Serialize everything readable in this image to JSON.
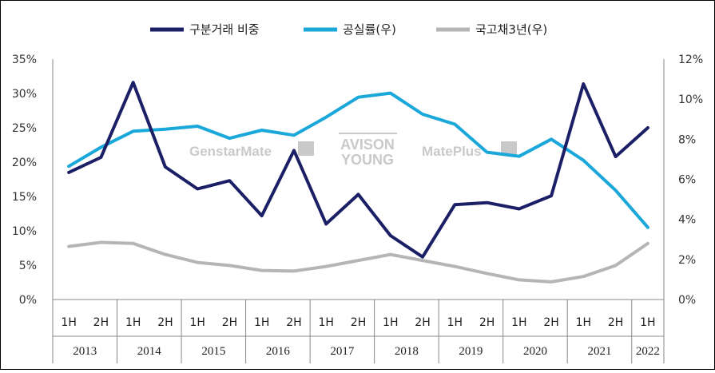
{
  "colors": {
    "share": "#1b1f66",
    "vacancy": "#1aa7d9",
    "bond": "#b5b5b5",
    "axis": "#888888",
    "watermark": "#c9c9c9"
  },
  "watermarks": {
    "genstar": "GenstarMate",
    "avison_line1": "AVISON",
    "avison_line2": "YOUNG",
    "mateplus": "MatePlus"
  },
  "chart_data": {
    "type": "line",
    "title": "",
    "legend_position": "top",
    "categories": [
      "1H",
      "2H",
      "1H",
      "2H",
      "1H",
      "2H",
      "1H",
      "2H",
      "1H",
      "2H",
      "1H",
      "2H",
      "1H",
      "2H",
      "1H",
      "2H",
      "1H",
      "2H",
      "1H"
    ],
    "years": [
      "2013",
      "2014",
      "2015",
      "2016",
      "2017",
      "2018",
      "2019",
      "2020",
      "2021",
      "2022"
    ],
    "left_axis": {
      "min": 0,
      "max": 35,
      "step": 5,
      "ticks": [
        "0%",
        "5%",
        "10%",
        "15%",
        "20%",
        "25%",
        "30%",
        "35%"
      ]
    },
    "right_axis": {
      "min": 0,
      "max": 12,
      "step": 2,
      "ticks": [
        "0%",
        "2%",
        "4%",
        "6%",
        "8%",
        "10%",
        "12%"
      ]
    },
    "series": [
      {
        "name": "구분거래 비중",
        "axis": "left",
        "values": [
          18.5,
          20.7,
          31.6,
          19.3,
          16.1,
          17.3,
          12.2,
          21.7,
          11.0,
          15.3,
          9.3,
          6.2,
          13.8,
          14.1,
          13.2,
          15.1,
          31.4,
          20.8,
          25.0
        ]
      },
      {
        "name": "공실률(우)",
        "axis": "right",
        "values": [
          6.65,
          7.6,
          8.4,
          8.5,
          8.65,
          8.05,
          8.45,
          8.2,
          9.1,
          10.1,
          10.3,
          9.25,
          8.75,
          7.35,
          7.15,
          8.0,
          6.95,
          5.45,
          3.6
        ]
      },
      {
        "name": "국고채3년(우)",
        "axis": "right",
        "values": [
          2.65,
          2.85,
          2.8,
          2.25,
          1.85,
          1.7,
          1.45,
          1.42,
          1.65,
          1.95,
          2.25,
          1.95,
          1.65,
          1.3,
          0.98,
          0.88,
          1.15,
          1.7,
          2.8
        ]
      }
    ]
  }
}
